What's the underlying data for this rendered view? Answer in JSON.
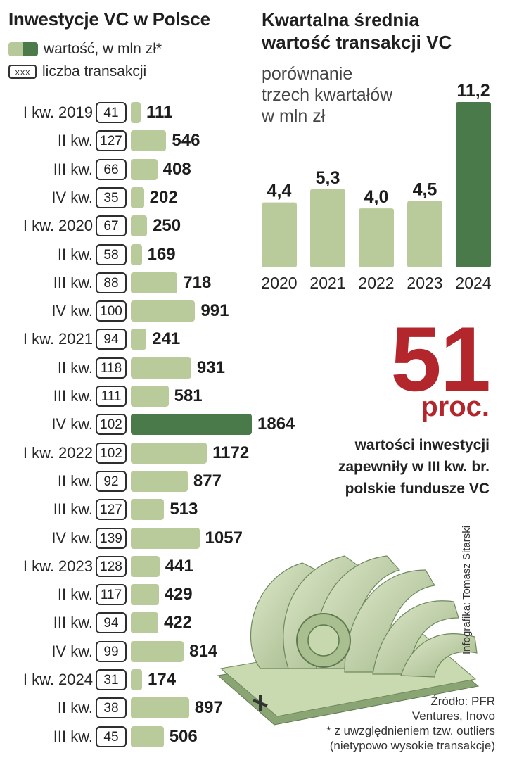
{
  "left": {
    "title": "Inwestycje VC w Polsce",
    "legend_value": "wartość, w mln zł*",
    "legend_count": "liczba transakcji",
    "legend_count_box": "XXX"
  },
  "right": {
    "title_line1": "Kwartalna średnia",
    "title_line2": "wartość transakcji VC",
    "subtitle_line1": "porównanie",
    "subtitle_line2": "trzech kwartałów",
    "subtitle_line3": "w mln zł"
  },
  "highlight": {
    "number": "51",
    "unit": "proc.",
    "caption_line1": "wartości inwestycji",
    "caption_line2": "zapewniły w III kw. br.",
    "caption_line3": "polskie fundusze VC"
  },
  "credit": "Infografika: Tomasz Sitarski",
  "source_line1": "Źródło: PFR",
  "source_line2": "Ventures, Inovo",
  "source_line3": "* z uwzględnieniem tzw. outliers",
  "source_line4": "(nietypowo wysokie transakcje)",
  "chart_data": [
    {
      "type": "bar",
      "orientation": "horizontal",
      "title": "Inwestycje VC w Polsce",
      "categories": [
        "I kw. 2019",
        "II kw.",
        "III kw.",
        "IV kw.",
        "I kw. 2020",
        "II kw.",
        "III kw.",
        "IV kw.",
        "I kw. 2021",
        "II kw.",
        "III kw.",
        "IV kw.",
        "I kw. 2022",
        "II kw.",
        "III kw.",
        "IV kw.",
        "I kw. 2023",
        "II kw.",
        "III kw.",
        "IV kw.",
        "I kw. 2024",
        "II kw.",
        "III kw."
      ],
      "series": [
        {
          "name": "wartość, w mln zł*",
          "values": [
            111,
            546,
            408,
            202,
            250,
            169,
            718,
            991,
            241,
            931,
            581,
            1864,
            1172,
            877,
            513,
            1057,
            441,
            429,
            422,
            814,
            174,
            897,
            506
          ]
        },
        {
          "name": "liczba transakcji",
          "values": [
            41,
            127,
            66,
            35,
            67,
            58,
            88,
            100,
            94,
            118,
            111,
            102,
            102,
            92,
            127,
            139,
            128,
            117,
            94,
            99,
            31,
            38,
            45
          ]
        }
      ],
      "highlight_index": 11,
      "colors": {
        "bar": "#b9cb9b",
        "highlight": "#4a7a4a"
      }
    },
    {
      "type": "bar",
      "title": "Kwartalna średnia wartość transakcji VC",
      "subtitle": "porównanie trzech kwartałów w mln zł",
      "categories": [
        "2020",
        "2021",
        "2022",
        "2023",
        "2024"
      ],
      "values": [
        4.4,
        5.3,
        4.0,
        4.5,
        11.2
      ],
      "value_labels": [
        "4,4",
        "5,3",
        "4,0",
        "4,5",
        "11,2"
      ],
      "highlight_index": 4,
      "colors": {
        "bar": "#b9cb9b",
        "highlight": "#4a7a4a"
      }
    }
  ]
}
